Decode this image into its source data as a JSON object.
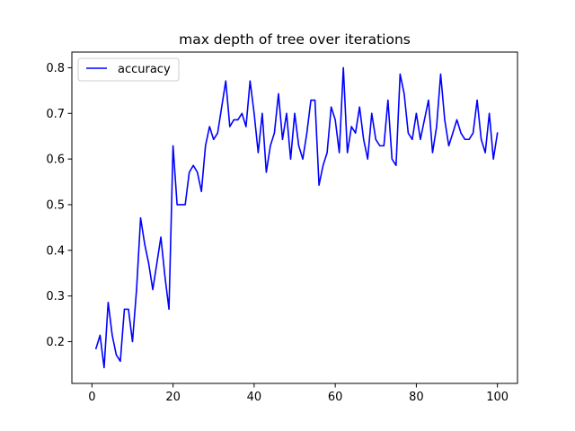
{
  "chart_data": {
    "type": "line",
    "title": "max depth of tree over iterations",
    "xlabel": "",
    "ylabel": "",
    "xlim": [
      -4.95,
      104.95
    ],
    "ylim": [
      0.1085,
      0.8343
    ],
    "x_ticks": [
      0,
      20,
      40,
      60,
      80,
      100
    ],
    "y_ticks": [
      0.2,
      0.3,
      0.4,
      0.5,
      0.6,
      0.7,
      0.8
    ],
    "x_tick_labels": [
      "0",
      "20",
      "40",
      "60",
      "80",
      "100"
    ],
    "y_tick_labels": [
      "0.2",
      "0.3",
      "0.4",
      "0.5",
      "0.6",
      "0.7",
      "0.8"
    ],
    "grid": false,
    "legend_position": "top-left",
    "colors": {
      "line": "#0000ff",
      "axes": "#000000",
      "background": "#ffffff"
    },
    "series": [
      {
        "name": "accuracy",
        "x": [
          1,
          2,
          3,
          4,
          5,
          6,
          7,
          8,
          9,
          10,
          11,
          12,
          13,
          14,
          15,
          16,
          17,
          18,
          19,
          20,
          21,
          22,
          23,
          24,
          25,
          26,
          27,
          28,
          29,
          30,
          31,
          32,
          33,
          34,
          35,
          36,
          37,
          38,
          39,
          40,
          41,
          42,
          43,
          44,
          45,
          46,
          47,
          48,
          49,
          50,
          51,
          52,
          53,
          54,
          55,
          56,
          57,
          58,
          59,
          60,
          61,
          62,
          63,
          64,
          65,
          66,
          67,
          68,
          69,
          70,
          71,
          72,
          73,
          74,
          75,
          76,
          77,
          78,
          79,
          80,
          81,
          82,
          83,
          84,
          85,
          86,
          87,
          88,
          89,
          90,
          91,
          92,
          93,
          94,
          95,
          96,
          97,
          98,
          99,
          100
        ],
        "values": [
          0.185,
          0.214,
          0.143,
          0.286,
          0.214,
          0.171,
          0.157,
          0.271,
          0.271,
          0.2,
          0.314,
          0.471,
          0.414,
          0.371,
          0.314,
          0.371,
          0.429,
          0.343,
          0.271,
          0.629,
          0.5,
          0.5,
          0.5,
          0.571,
          0.586,
          0.571,
          0.529,
          0.629,
          0.671,
          0.643,
          0.657,
          0.714,
          0.771,
          0.671,
          0.686,
          0.686,
          0.7,
          0.671,
          0.771,
          0.7,
          0.614,
          0.7,
          0.571,
          0.629,
          0.657,
          0.743,
          0.643,
          0.7,
          0.6,
          0.7,
          0.629,
          0.6,
          0.657,
          0.729,
          0.729,
          0.543,
          0.586,
          0.614,
          0.714,
          0.686,
          0.614,
          0.8,
          0.614,
          0.671,
          0.657,
          0.714,
          0.643,
          0.6,
          0.7,
          0.643,
          0.629,
          0.629,
          0.729,
          0.6,
          0.586,
          0.786,
          0.743,
          0.657,
          0.643,
          0.7,
          0.643,
          0.686,
          0.729,
          0.614,
          0.671,
          0.786,
          0.686,
          0.629,
          0.657,
          0.686,
          0.657,
          0.643,
          0.643,
          0.657,
          0.729,
          0.643,
          0.614,
          0.7,
          0.6,
          0.657
        ]
      }
    ]
  }
}
